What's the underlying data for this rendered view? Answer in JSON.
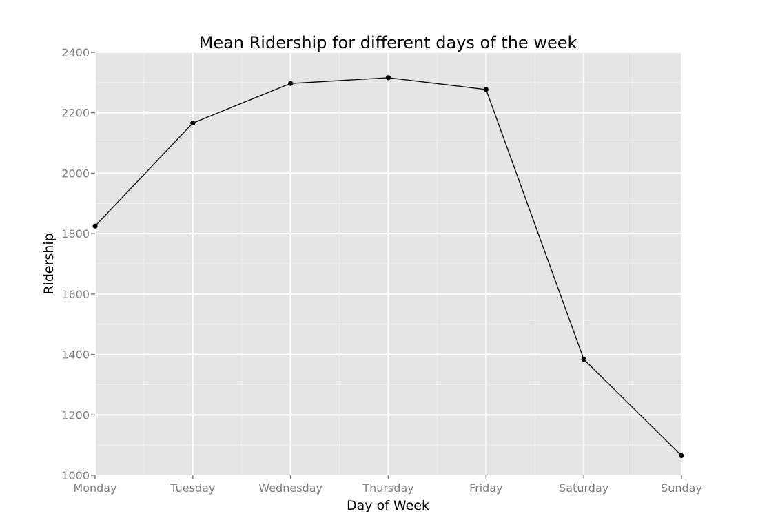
{
  "chart_data": {
    "type": "line",
    "title": "Mean Ridership for different days of the week",
    "xlabel": "Day of Week",
    "ylabel": "Ridership",
    "categories": [
      "Monday",
      "Tuesday",
      "Wednesday",
      "Thursday",
      "Friday",
      "Saturday",
      "Sunday"
    ],
    "values": [
      1825,
      2166,
      2297,
      2316,
      2277,
      1384,
      1065
    ],
    "ylim": [
      1000,
      2400
    ],
    "yticks": [
      1000,
      1200,
      1400,
      1600,
      1800,
      2000,
      2200,
      2400
    ],
    "grid": true,
    "colors": {
      "panel": "#e5e5e5",
      "grid": "#ffffff",
      "line": "#000000",
      "tick_label": "#7f7f7f"
    }
  }
}
